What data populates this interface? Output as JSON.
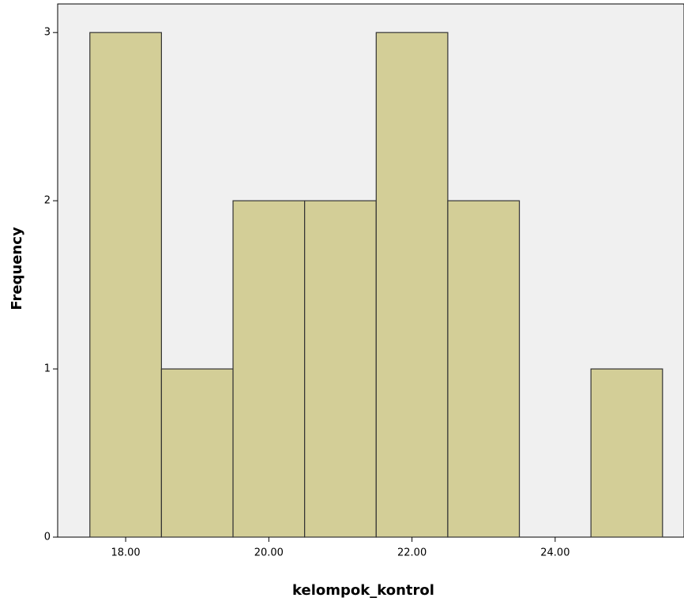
{
  "chart_data": {
    "type": "histogram",
    "xlabel": "kelompok_kontrol",
    "ylabel": "Frequency",
    "bins": [
      17.5,
      18.5,
      19.5,
      20.5,
      21.5,
      22.5,
      23.5,
      24.5,
      25.5
    ],
    "counts": [
      3,
      1,
      2,
      2,
      3,
      2,
      0,
      1
    ],
    "color": "#d3ce97",
    "edgecolor": "#333333",
    "background": "#f0f0f0",
    "xlim": [
      17.05,
      25.8
    ],
    "ylim": [
      0,
      3.17
    ],
    "xticks": [
      {
        "value": 18,
        "label": "18.00"
      },
      {
        "value": 20,
        "label": "20.00"
      },
      {
        "value": 22,
        "label": "22.00"
      },
      {
        "value": 24,
        "label": "24.00"
      }
    ],
    "yticks": [
      0,
      1,
      2,
      3
    ]
  }
}
